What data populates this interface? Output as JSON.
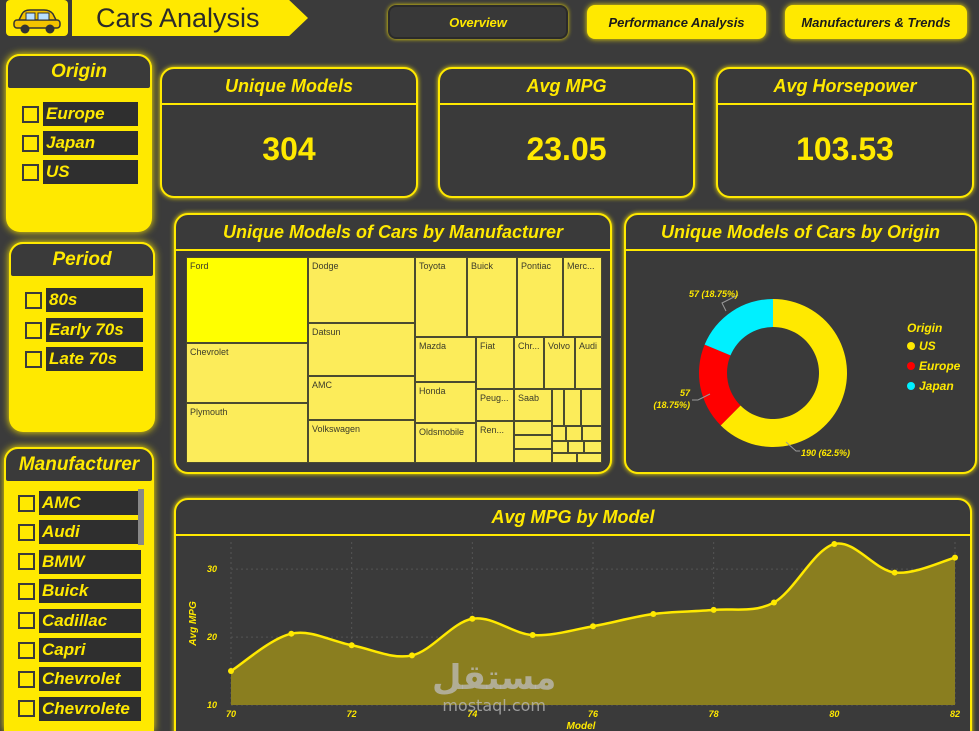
{
  "header": {
    "title": "Cars Analysis",
    "tabs": [
      {
        "label": "Overview",
        "active": true
      },
      {
        "label": "Performance Analysis",
        "active": false
      },
      {
        "label": "Manufacturers & Trends",
        "active": false
      }
    ]
  },
  "slicers": {
    "origin": {
      "title": "Origin",
      "items": [
        "Europe",
        "Japan",
        "US"
      ]
    },
    "period": {
      "title": "Period",
      "items": [
        "80s",
        "Early 70s",
        "Late 70s"
      ]
    },
    "manufacturer": {
      "title": "Manufacturer",
      "items": [
        "AMC",
        "Audi",
        "BMW",
        "Buick",
        "Cadillac",
        "Capri",
        "Chevrolet",
        "Chevrolete"
      ]
    }
  },
  "kpis": [
    {
      "label": "Unique Models",
      "value": "304"
    },
    {
      "label": "Avg MPG",
      "value": "23.05"
    },
    {
      "label": "Avg Horsepower",
      "value": "103.53"
    }
  ],
  "treemap": {
    "title": "Unique Models of Cars by Manufacturer",
    "labels": [
      "Ford",
      "Chevrolet",
      "Plymouth",
      "Dodge",
      "Datsun",
      "AMC",
      "Volkswagen",
      "Toyota",
      "Buick",
      "Pontiac",
      "Merc...",
      "Mazda",
      "Fiat",
      "Chr...",
      "Volvo",
      "Audi",
      "Honda",
      "Peug...",
      "Saab",
      "Oldsmobile",
      "Ren..."
    ]
  },
  "donut": {
    "title": "Unique Models of Cars by Origin",
    "legend_title": "Origin",
    "slices": [
      {
        "name": "US",
        "value": 190,
        "label": "190 (62.5%)",
        "color": "#ffe900"
      },
      {
        "name": "Europe",
        "value": 57,
        "label": "57 (18.75%)",
        "color": "#ff0000"
      },
      {
        "name": "Japan",
        "value": 57,
        "label": "57 (18.75%)",
        "color": "#00f0ff"
      }
    ],
    "europe_label_line1": "57",
    "europe_label_line2": "(18.75%)"
  },
  "chart_data": {
    "type": "area",
    "title": "Avg MPG by Model",
    "xlabel": "Model",
    "ylabel": "Avg MPG",
    "x": [
      70,
      71,
      72,
      73,
      74,
      75,
      76,
      77,
      78,
      79,
      80,
      81,
      82
    ],
    "values": [
      15,
      20.5,
      18.8,
      17.3,
      22.7,
      20.3,
      21.6,
      23.4,
      24.0,
      25.1,
      33.7,
      29.5,
      31.7
    ],
    "xticks": [
      70,
      72,
      74,
      76,
      78,
      80,
      82
    ],
    "yticks": [
      10,
      20,
      30
    ],
    "xlim": [
      70,
      82
    ],
    "ylim": [
      10,
      34
    ],
    "grid": true,
    "line_color": "#ffe900",
    "fill_color": "#8a7e1f"
  },
  "watermark": {
    "arabic": "مستقل",
    "latin": "mostaql.com"
  }
}
